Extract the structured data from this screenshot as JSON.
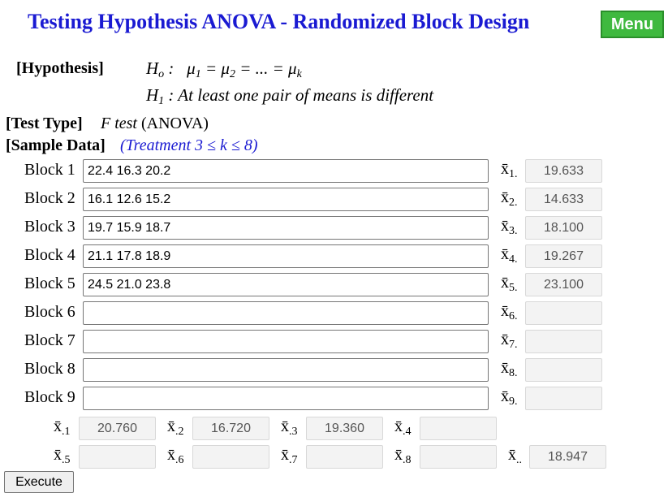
{
  "title": "Testing Hypothesis ANOVA - Randomized Block Design",
  "menu_label": "Menu",
  "hypothesis": {
    "label": "[Hypothesis]",
    "h0_symbol": "H",
    "h0_sub": "o",
    "h0_text": " :   μ",
    "h0_rest": "1 = μ2 = ... = μk",
    "h1_symbol": "H",
    "h1_sub": "1",
    "h1_text": " : At least one pair of means is different"
  },
  "test_type": {
    "label": "[Test Type]",
    "value_italic": "F test",
    "value": " (ANOVA)"
  },
  "sample_data": {
    "label": "[Sample Data]",
    "note": "(Treatment 3 ≤ k ≤ 8)"
  },
  "blocks": [
    {
      "label": "Block 1",
      "value": "22.4 16.3 20.2",
      "xbar_sub": "1.",
      "mean": "19.633"
    },
    {
      "label": "Block 2",
      "value": "16.1 12.6 15.2",
      "xbar_sub": "2.",
      "mean": "14.633"
    },
    {
      "label": "Block 3",
      "value": "19.7 15.9 18.7",
      "xbar_sub": "3.",
      "mean": "18.100"
    },
    {
      "label": "Block 4",
      "value": "21.1 17.8 18.9",
      "xbar_sub": "4.",
      "mean": "19.267"
    },
    {
      "label": "Block 5",
      "value": "24.5 21.0 23.8",
      "xbar_sub": "5.",
      "mean": "23.100"
    },
    {
      "label": "Block 6",
      "value": "",
      "xbar_sub": "6.",
      "mean": ""
    },
    {
      "label": "Block 7",
      "value": "",
      "xbar_sub": "7.",
      "mean": ""
    },
    {
      "label": "Block 8",
      "value": "",
      "xbar_sub": "8.",
      "mean": ""
    },
    {
      "label": "Block 9",
      "value": "",
      "xbar_sub": "9.",
      "mean": ""
    }
  ],
  "treatment_means": [
    {
      "sub": ".1",
      "value": "20.760"
    },
    {
      "sub": ".2",
      "value": "16.720"
    },
    {
      "sub": ".3",
      "value": "19.360"
    },
    {
      "sub": ".4",
      "value": ""
    },
    {
      "sub": ".5",
      "value": ""
    },
    {
      "sub": ".6",
      "value": ""
    },
    {
      "sub": ".7",
      "value": ""
    },
    {
      "sub": ".8",
      "value": ""
    }
  ],
  "grand_mean": {
    "sub": "..",
    "value": "18.947"
  },
  "xbar_symbol": "x̄",
  "execute_label": "Execute"
}
